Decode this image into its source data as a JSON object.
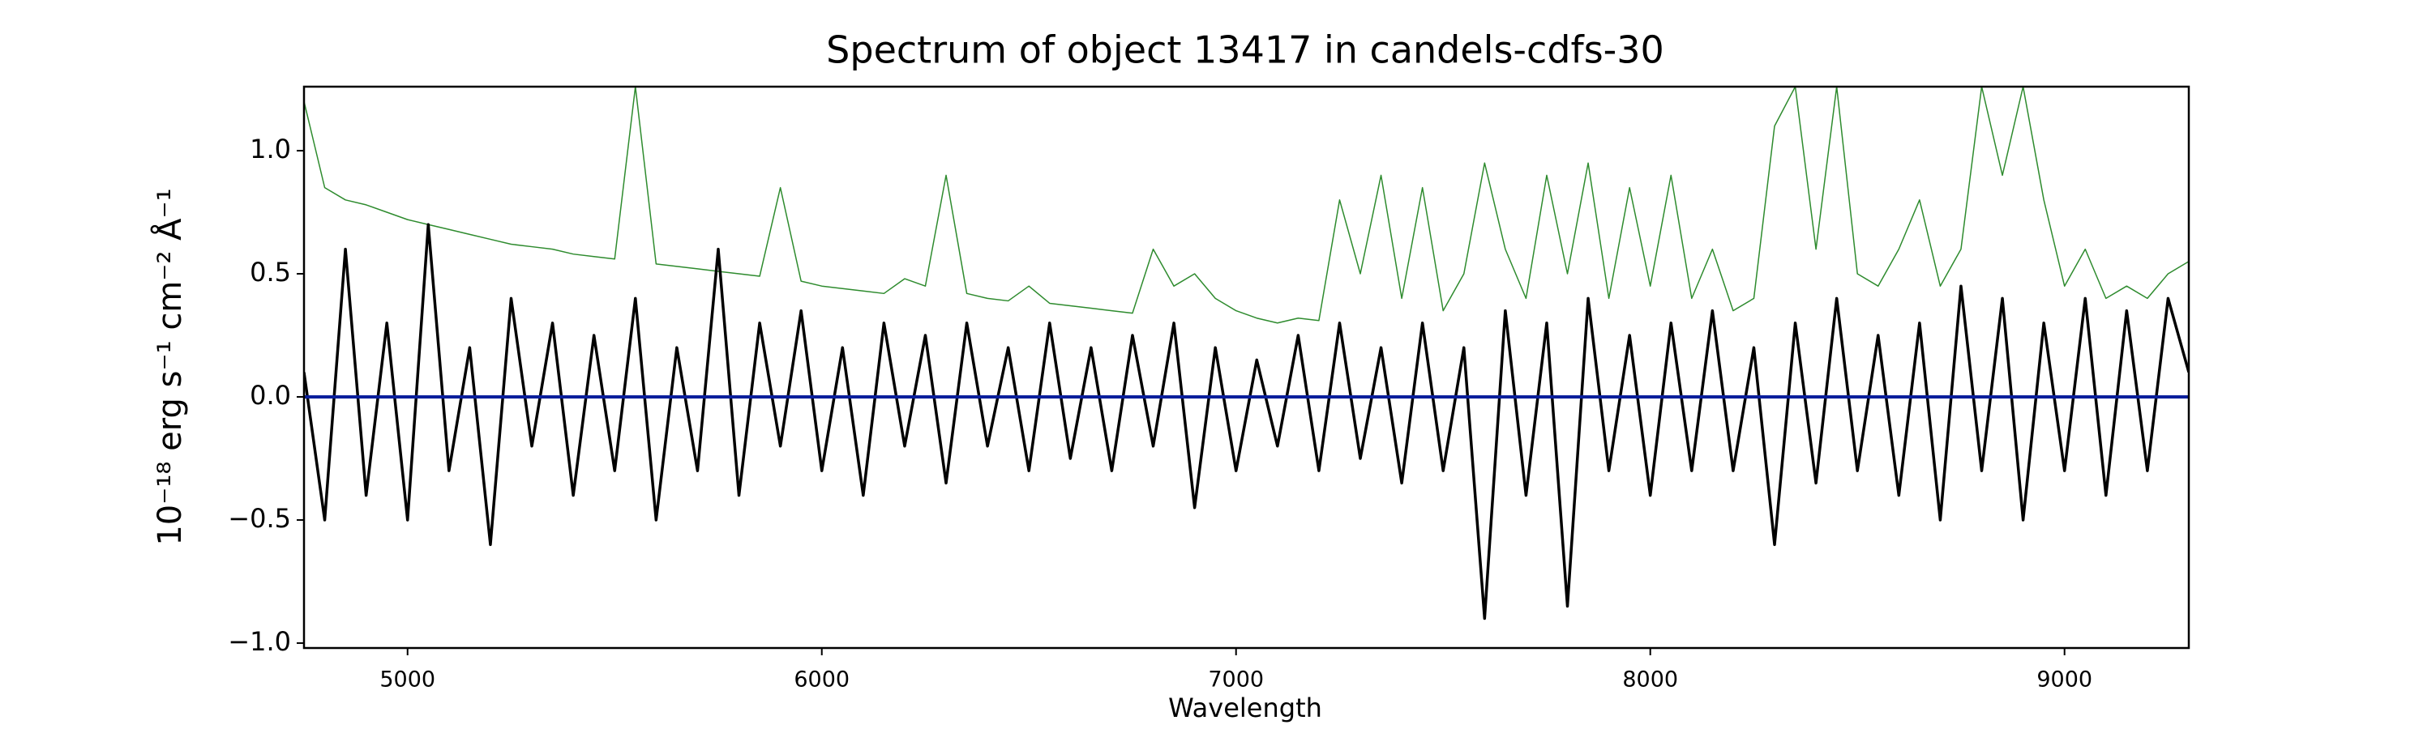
{
  "chart_data": {
    "type": "line",
    "title": "Spectrum of object 13417 in candels-cdfs-30",
    "x_label": "Wavelength",
    "y_label": "10⁻¹⁸ erg s⁻¹ cm⁻² Å⁻¹",
    "xlim": [
      4750,
      9300
    ],
    "ylim": [
      -1.02,
      1.26
    ],
    "xticks": [
      5000,
      6000,
      7000,
      8000,
      9000
    ],
    "yticks": [
      {
        "value": -1.0,
        "label": "−1.0"
      },
      {
        "value": -0.5,
        "label": "−0.5"
      },
      {
        "value": 0.0,
        "label": "0.0"
      },
      {
        "value": 0.5,
        "label": "0.5"
      },
      {
        "value": 1.0,
        "label": "1.0"
      }
    ],
    "x": [
      4750,
      4800,
      4850,
      4900,
      4950,
      5000,
      5050,
      5100,
      5150,
      5200,
      5250,
      5300,
      5350,
      5400,
      5450,
      5500,
      5550,
      5600,
      5650,
      5700,
      5750,
      5800,
      5850,
      5900,
      5950,
      6000,
      6050,
      6100,
      6150,
      6200,
      6250,
      6300,
      6350,
      6400,
      6450,
      6500,
      6550,
      6600,
      6650,
      6700,
      6750,
      6800,
      6850,
      6900,
      6950,
      7000,
      7050,
      7100,
      7150,
      7200,
      7250,
      7300,
      7350,
      7400,
      7450,
      7500,
      7550,
      7600,
      7650,
      7700,
      7750,
      7800,
      7850,
      7900,
      7950,
      8000,
      8050,
      8100,
      8150,
      8200,
      8250,
      8300,
      8350,
      8400,
      8450,
      8500,
      8550,
      8600,
      8650,
      8700,
      8750,
      8800,
      8850,
      8900,
      8950,
      9000,
      9050,
      9100,
      9150,
      9200,
      9250,
      9300
    ],
    "series": [
      {
        "color": "#2e8b2e",
        "width": 1.5,
        "values": [
          1.2,
          0.85,
          0.8,
          0.78,
          0.75,
          0.72,
          0.7,
          0.68,
          0.66,
          0.64,
          0.62,
          0.61,
          0.6,
          0.58,
          0.57,
          0.56,
          1.26,
          0.54,
          0.53,
          0.52,
          0.51,
          0.5,
          0.49,
          0.85,
          0.47,
          0.45,
          0.44,
          0.43,
          0.42,
          0.48,
          0.45,
          0.9,
          0.42,
          0.4,
          0.39,
          0.45,
          0.38,
          0.37,
          0.36,
          0.35,
          0.34,
          0.6,
          0.45,
          0.5,
          0.4,
          0.35,
          0.32,
          0.3,
          0.32,
          0.31,
          0.8,
          0.5,
          0.9,
          0.4,
          0.85,
          0.35,
          0.5,
          0.95,
          0.6,
          0.4,
          0.9,
          0.5,
          0.95,
          0.4,
          0.85,
          0.45,
          0.9,
          0.4,
          0.6,
          0.35,
          0.4,
          1.1,
          1.26,
          0.6,
          1.26,
          0.5,
          0.45,
          0.6,
          0.8,
          0.45,
          0.6,
          1.26,
          0.9,
          1.26,
          0.8,
          0.45,
          0.6,
          0.4,
          0.45,
          0.4,
          0.5,
          0.55
        ]
      },
      {
        "color": "#000000",
        "width": 3.5,
        "values": [
          0.1,
          -0.5,
          0.6,
          -0.4,
          0.3,
          -0.5,
          0.7,
          -0.3,
          0.2,
          -0.6,
          0.4,
          -0.2,
          0.3,
          -0.4,
          0.25,
          -0.3,
          0.4,
          -0.5,
          0.2,
          -0.3,
          0.6,
          -0.4,
          0.3,
          -0.2,
          0.35,
          -0.3,
          0.2,
          -0.4,
          0.3,
          -0.2,
          0.25,
          -0.35,
          0.3,
          -0.2,
          0.2,
          -0.3,
          0.3,
          -0.25,
          0.2,
          -0.3,
          0.25,
          -0.2,
          0.3,
          -0.45,
          0.2,
          -0.3,
          0.15,
          -0.2,
          0.25,
          -0.3,
          0.3,
          -0.25,
          0.2,
          -0.35,
          0.3,
          -0.3,
          0.2,
          -0.9,
          0.35,
          -0.4,
          0.3,
          -0.85,
          0.4,
          -0.3,
          0.25,
          -0.4,
          0.3,
          -0.3,
          0.35,
          -0.3,
          0.2,
          -0.6,
          0.3,
          -0.35,
          0.4,
          -0.3,
          0.25,
          -0.4,
          0.3,
          -0.5,
          0.45,
          -0.3,
          0.4,
          -0.5,
          0.3,
          -0.3,
          0.4,
          -0.4,
          0.35,
          -0.3,
          0.4,
          0.1
        ]
      },
      {
        "color": "#0a1f9c",
        "width": 4,
        "values": [
          0,
          0,
          0,
          0,
          0,
          0,
          0,
          0,
          0,
          0,
          0,
          0,
          0,
          0,
          0,
          0,
          0,
          0,
          0,
          0,
          0,
          0,
          0,
          0,
          0,
          0,
          0,
          0,
          0,
          0,
          0,
          0,
          0,
          0,
          0,
          0,
          0,
          0,
          0,
          0,
          0,
          0,
          0,
          0,
          0,
          0,
          0,
          0,
          0,
          0,
          0,
          0,
          0,
          0,
          0,
          0,
          0,
          0,
          0,
          0,
          0,
          0,
          0,
          0,
          0,
          0,
          0,
          0,
          0,
          0,
          0,
          0,
          0,
          0,
          0,
          0,
          0,
          0,
          0,
          0,
          0,
          0,
          0,
          0,
          0,
          0,
          0,
          0,
          0,
          0,
          0,
          0
        ]
      }
    ]
  }
}
